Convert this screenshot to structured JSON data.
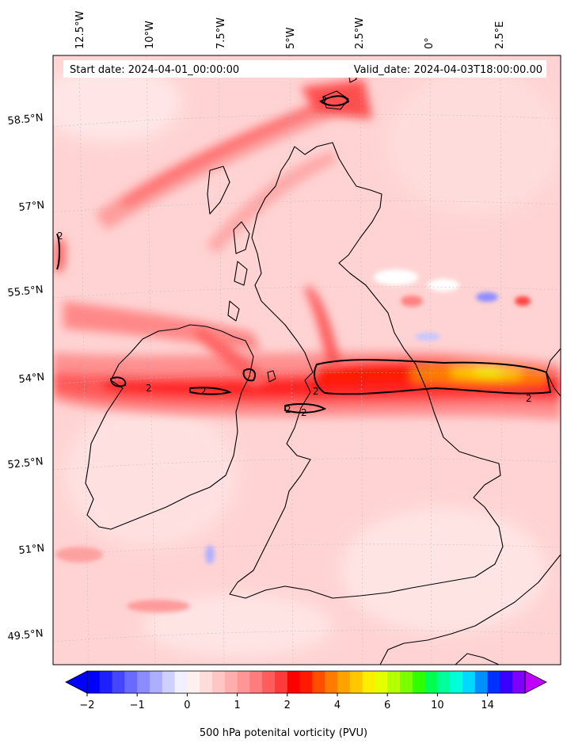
{
  "header": {
    "start_date": "Start date: 2024-04-01_00:00:00",
    "valid_date": "Valid_date: 2024-04-03T18:00:00.00"
  },
  "axes": {
    "lon_labels": [
      "12.5°W",
      "10°W",
      "7.5°W",
      "5°W",
      "2.5°W",
      "0°",
      "2.5°E"
    ],
    "lat_labels": [
      "58.5°N",
      "57°N",
      "55.5°N",
      "54°N",
      "52.5°N",
      "51°N",
      "49.5°N"
    ]
  },
  "colorbar": {
    "label": "500 hPa potenital vorticity (PVU)",
    "tick_labels": [
      "−2",
      "−1",
      "0",
      "1",
      "2",
      "4",
      "6",
      "10",
      "14"
    ],
    "colors": [
      "#0000ff",
      "#2020ff",
      "#4646ff",
      "#6a6aff",
      "#8c8cff",
      "#aeaeff",
      "#d0d0ff",
      "#f0f0ff",
      "#fff0f0",
      "#ffdcdc",
      "#ffc6c6",
      "#ffaeae",
      "#ff9696",
      "#ff7c7c",
      "#ff5c5c",
      "#ff3a3a",
      "#ff0000",
      "#ff1a00",
      "#ff4e00",
      "#ff7a00",
      "#ffa200",
      "#ffc800",
      "#ffee00",
      "#e6ff00",
      "#b4ff00",
      "#7aff00",
      "#30ff00",
      "#00ff50",
      "#00ff9a",
      "#00ffd8",
      "#00d8ff",
      "#0090ff",
      "#0030ff",
      "#3a00ff",
      "#8000ff"
    ],
    "extend_low_color": "#0000ff",
    "extend_high_color": "#c000ff"
  },
  "contours": {
    "level_label": "2"
  }
}
